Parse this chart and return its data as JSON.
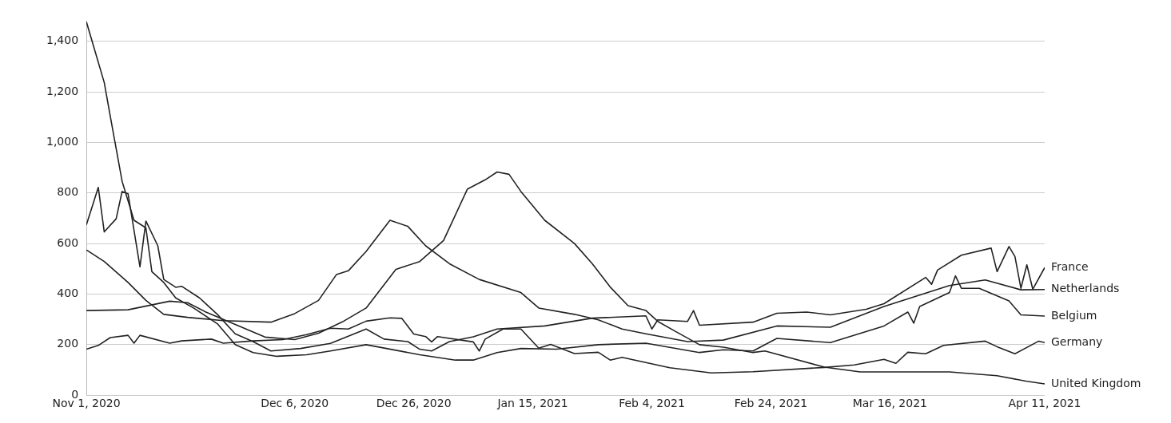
{
  "chart_data": {
    "type": "line",
    "xlim": [
      "2020-11-01",
      "2021-04-11"
    ],
    "xticks": [
      {
        "value": "2020-11-01",
        "label": "Nov 1, 2020"
      },
      {
        "value": "2020-12-06",
        "label": "Dec 6, 2020"
      },
      {
        "value": "2020-12-26",
        "label": "Dec 26, 2020"
      },
      {
        "value": "2021-01-15",
        "label": "Jan 15, 2021"
      },
      {
        "value": "2021-02-04",
        "label": "Feb 4, 2021"
      },
      {
        "value": "2021-02-24",
        "label": "Feb 24, 2021"
      },
      {
        "value": "2021-03-16",
        "label": "Mar 16, 2021"
      },
      {
        "value": "2021-04-11",
        "label": "Apr 11, 2021"
      }
    ],
    "ylim": [
      0,
      1480
    ],
    "yticks": [
      0,
      200,
      400,
      600,
      800,
      {
        "value": 1000,
        "label": "1,000"
      },
      {
        "value": 1200,
        "label": "1,200"
      },
      {
        "value": 1400,
        "label": "1,400"
      }
    ],
    "grid": "y",
    "marker": "none",
    "line_style": "solid",
    "series": [
      {
        "name": "France",
        "color": "#222222",
        "x": [
          "2020-11-01",
          "2020-11-03",
          "2020-11-04",
          "2020-11-06",
          "2020-11-07",
          "2020-11-08",
          "2020-11-10",
          "2020-11-11",
          "2020-11-13",
          "2020-11-14",
          "2020-11-16",
          "2020-11-17",
          "2020-11-20",
          "2020-11-23",
          "2020-11-26",
          "2020-11-29",
          "2020-12-02",
          "2020-12-07",
          "2020-12-12",
          "2020-12-18",
          "2020-12-21",
          "2020-12-25",
          "2020-12-27",
          "2020-12-29",
          "2021-01-01",
          "2021-01-05",
          "2021-01-09",
          "2021-01-17",
          "2021-01-25",
          "2021-02-03",
          "2021-02-04",
          "2021-02-05",
          "2021-02-10",
          "2021-02-11",
          "2021-02-12",
          "2021-02-21",
          "2021-02-25",
          "2021-03-02",
          "2021-03-06",
          "2021-03-12",
          "2021-03-15",
          "2021-03-22",
          "2021-03-23",
          "2021-03-24",
          "2021-03-28",
          "2021-04-02",
          "2021-04-03",
          "2021-04-05",
          "2021-04-06",
          "2021-04-07",
          "2021-04-08",
          "2021-04-09",
          "2021-04-11"
        ],
        "values": [
          674,
          822,
          646,
          698,
          806,
          797,
          508,
          689,
          591,
          458,
          427,
          431,
          385,
          320,
          243,
          212,
          175,
          185,
          205,
          262,
          222,
          212,
          182,
          175,
          212,
          231,
          262,
          274,
          305,
          314,
          262,
          298,
          292,
          335,
          277,
          289,
          324,
          329,
          318,
          340,
          362,
          466,
          439,
          495,
          554,
          582,
          489,
          588,
          549,
          423,
          516,
          419,
          505
        ]
      },
      {
        "name": "Netherlands",
        "color": "#222222",
        "x": [
          "2020-11-01",
          "2020-11-04",
          "2020-11-08",
          "2020-11-11",
          "2020-11-14",
          "2020-11-18",
          "2020-11-24",
          "2020-12-02",
          "2020-12-06",
          "2020-12-10",
          "2020-12-13",
          "2020-12-15",
          "2020-12-18",
          "2020-12-22",
          "2020-12-25",
          "2020-12-28",
          "2021-01-01",
          "2021-01-06",
          "2021-01-13",
          "2021-01-16",
          "2021-01-22",
          "2021-01-26",
          "2021-01-30",
          "2021-02-03",
          "2021-02-10",
          "2021-02-16",
          "2021-02-25",
          "2021-03-06",
          "2021-03-15",
          "2021-03-26",
          "2021-04-01",
          "2021-04-07",
          "2021-04-11"
        ],
        "values": [
          575,
          529,
          446,
          375,
          320,
          308,
          295,
          289,
          323,
          375,
          477,
          492,
          569,
          692,
          668,
          591,
          520,
          458,
          406,
          345,
          320,
          298,
          262,
          243,
          212,
          218,
          274,
          269,
          351,
          434,
          456,
          417,
          418
        ]
      },
      {
        "name": "Belgium",
        "color": "#222222",
        "x": [
          "2020-11-01",
          "2020-11-04",
          "2020-11-05",
          "2020-11-07",
          "2020-11-09",
          "2020-11-11",
          "2020-11-12",
          "2020-11-14",
          "2020-11-16",
          "2020-11-19",
          "2020-11-23",
          "2020-11-26",
          "2020-11-29",
          "2020-12-03",
          "2020-12-08",
          "2020-12-12",
          "2020-12-18",
          "2020-12-27",
          "2021-01-02",
          "2021-01-05",
          "2021-01-09",
          "2021-01-13",
          "2021-01-19",
          "2021-01-26",
          "2021-02-03",
          "2021-02-12",
          "2021-02-16",
          "2021-02-21",
          "2021-02-25",
          "2021-03-06",
          "2021-03-15",
          "2021-03-19",
          "2021-03-20",
          "2021-03-21",
          "2021-03-26",
          "2021-03-27",
          "2021-03-28",
          "2021-03-31",
          "2021-04-05",
          "2021-04-07",
          "2021-04-11"
        ],
        "values": [
          1477,
          1237,
          1105,
          846,
          692,
          662,
          489,
          446,
          385,
          345,
          283,
          200,
          169,
          154,
          160,
          175,
          200,
          160,
          139,
          139,
          169,
          185,
          182,
          200,
          206,
          169,
          180,
          175,
          225,
          208,
          274,
          329,
          285,
          351,
          406,
          472,
          423,
          423,
          373,
          318,
          313
        ]
      },
      {
        "name": "Germany",
        "color": "#222222",
        "x": [
          "2020-11-01",
          "2020-11-03",
          "2020-11-05",
          "2020-11-08",
          "2020-11-09",
          "2020-11-10",
          "2020-11-15",
          "2020-11-17",
          "2020-11-22",
          "2020-11-24",
          "2020-11-29",
          "2020-12-04",
          "2020-12-08",
          "2020-12-12",
          "2020-12-15",
          "2020-12-18",
          "2020-12-22",
          "2020-12-24",
          "2020-12-26",
          "2020-12-28",
          "2020-12-29",
          "2020-12-30",
          "2021-01-05",
          "2021-01-06",
          "2021-01-07",
          "2021-01-10",
          "2021-01-13",
          "2021-01-16",
          "2021-01-18",
          "2021-01-22",
          "2021-01-26",
          "2021-01-28",
          "2021-01-30",
          "2021-02-07",
          "2021-02-14",
          "2021-02-21",
          "2021-03-05",
          "2021-03-10",
          "2021-03-15",
          "2021-03-17",
          "2021-03-19",
          "2021-03-22",
          "2021-03-25",
          "2021-04-01",
          "2021-04-03",
          "2021-04-06",
          "2021-04-10",
          "2021-04-11"
        ],
        "values": [
          182,
          197,
          228,
          237,
          206,
          237,
          206,
          215,
          222,
          206,
          215,
          220,
          240,
          265,
          262,
          293,
          306,
          304,
          242,
          232,
          211,
          232,
          211,
          175,
          222,
          262,
          262,
          186,
          201,
          165,
          170,
          139,
          150,
          109,
          88,
          93,
          110,
          120,
          142,
          126,
          170,
          164,
          197,
          214,
          192,
          164,
          214,
          208
        ]
      },
      {
        "name": "United Kingdom",
        "color": "#222222",
        "x": [
          "2020-11-01",
          "2020-11-08",
          "2020-11-15",
          "2020-11-18",
          "2020-11-21",
          "2020-11-26",
          "2020-12-01",
          "2020-12-06",
          "2020-12-10",
          "2020-12-14",
          "2020-12-18",
          "2020-12-23",
          "2020-12-27",
          "2020-12-31",
          "2021-01-04",
          "2021-01-07",
          "2021-01-09",
          "2021-01-11",
          "2021-01-13",
          "2021-01-17",
          "2021-01-22",
          "2021-01-25",
          "2021-01-28",
          "2021-01-31",
          "2021-02-03",
          "2021-02-05",
          "2021-02-08",
          "2021-02-12",
          "2021-02-16",
          "2021-02-21",
          "2021-02-23",
          "2021-03-05",
          "2021-03-11",
          "2021-03-26",
          "2021-04-03",
          "2021-04-08",
          "2021-04-11"
        ],
        "values": [
          335,
          338,
          372,
          366,
          330,
          280,
          230,
          220,
          245,
          290,
          345,
          498,
          529,
          612,
          815,
          852,
          883,
          874,
          806,
          692,
          600,
          520,
          428,
          354,
          335,
          292,
          252,
          200,
          190,
          169,
          175,
          111,
          92,
          92,
          77,
          55,
          45
        ]
      }
    ]
  }
}
